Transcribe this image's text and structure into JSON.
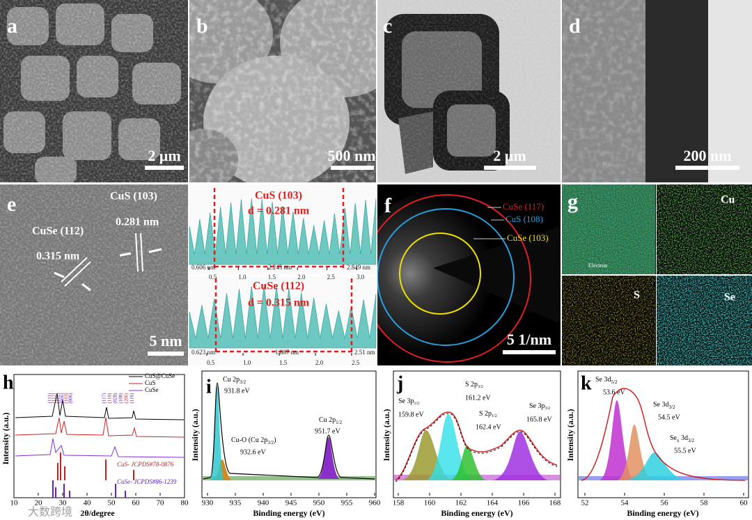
{
  "figure": {
    "a": {
      "label": "a",
      "scale_bar": "2 μm"
    },
    "b": {
      "label": "b",
      "scale_bar": "500 nm"
    },
    "c": {
      "label": "c",
      "scale_bar": "2 μm"
    },
    "d": {
      "label": "d",
      "scale_bar": "200 nm"
    },
    "e": {
      "label": "e",
      "annotations": [
        "CuS (103)",
        "0.281 nm",
        "CuSe (112)",
        "0.315 nm"
      ],
      "scale_bar": "5 nm"
    },
    "profiles": [
      {
        "title": "CuS (103)",
        "spacing": "d = 0.281 nm",
        "labels": [
          "0.606 nm",
          "2.243 nm",
          "2.849 nm"
        ],
        "ticks": [
          "0.5",
          "1.0",
          "1.5",
          "2.0",
          "2.5",
          "3.0"
        ]
      },
      {
        "title": "CuSe (112)",
        "spacing": "d = 0.315 nm",
        "labels": [
          "0.623 nm",
          "1.887 nm",
          "2.51 nm"
        ],
        "ticks": [
          "0.5",
          "1.0",
          "1.5",
          "2.0",
          "2.5"
        ]
      }
    ],
    "f": {
      "label": "f",
      "rings": [
        "CuSe (117)",
        "CuS (108)",
        "CuSe (103)"
      ],
      "scale_bar": "5 1/nm"
    },
    "g": {
      "label": "g",
      "elements": [
        "Cu",
        "S",
        "Se"
      ],
      "legend": "Electron"
    },
    "h": {
      "label": "h",
      "y_label": "Intensity (a.u.)",
      "x_label": "2θ/degree",
      "legend": [
        "CuS@CuSe",
        "CuS",
        "CuSe"
      ],
      "references": [
        "CuS- JCPDS#78-0876",
        "CuSe- JCPDS#86-1239"
      ],
      "peaks": [
        "(111)",
        "(112)",
        "(102)",
        "(006)",
        "(103)",
        "(006)",
        "(117)",
        "(110)",
        "(028)",
        "(108)",
        "(206)",
        "(116)"
      ],
      "xticks": [
        "10",
        "20",
        "30",
        "40",
        "50",
        "60",
        "70",
        "80"
      ]
    },
    "i": {
      "label": "i",
      "y_label": "Intensity (a.u.)",
      "x_label": "Binding energy (eV)",
      "xticks": [
        "930",
        "935",
        "940",
        "945",
        "950",
        "955",
        "960"
      ],
      "peaks": [
        {
          "name": "Cu 2p",
          "sub": "3/2",
          "energy": "931.8 eV"
        },
        {
          "name": "Cu-O (Cu 2p",
          "sub": "3/2",
          "close": ")",
          "energy": "932.6 eV"
        },
        {
          "name": "Cu 2p",
          "sub": "1/2",
          "energy": "951.7 eV"
        }
      ]
    },
    "j": {
      "label": "j",
      "y_label": "Intensity (a.u.)",
      "x_label": "Binding energy (eV)",
      "xticks": [
        "158",
        "160",
        "162",
        "164",
        "166",
        "168"
      ],
      "peaks": [
        {
          "name": "Se 3p",
          "sub": "1/2",
          "energy": "159.8 eV"
        },
        {
          "name": "S 2p",
          "sub": "3/2",
          "energy": "161.2 eV"
        },
        {
          "name": "S 2p",
          "sub": "1/2",
          "energy": "162.4 eV"
        },
        {
          "name": "Se 3p",
          "sub": "3/2",
          "energy": "165.8 eV"
        }
      ]
    },
    "k": {
      "label": "k",
      "y_label": "Intensity (a.u.)",
      "x_label": "Binding energy (eV)",
      "xticks": [
        "52",
        "54",
        "56",
        "58",
        "60"
      ],
      "peaks": [
        {
          "name": "Se 3d",
          "sub": "5/2",
          "energy": "53.6 eV"
        },
        {
          "name": "Se 3d",
          "sub": "3/2",
          "energy": "54.5 eV"
        },
        {
          "name": "Se",
          "name_sub": "x",
          "name2": " 3d",
          "sub": "3/2",
          "energy": "55.5 eV"
        }
      ]
    },
    "watermark": "大数跨境"
  }
}
